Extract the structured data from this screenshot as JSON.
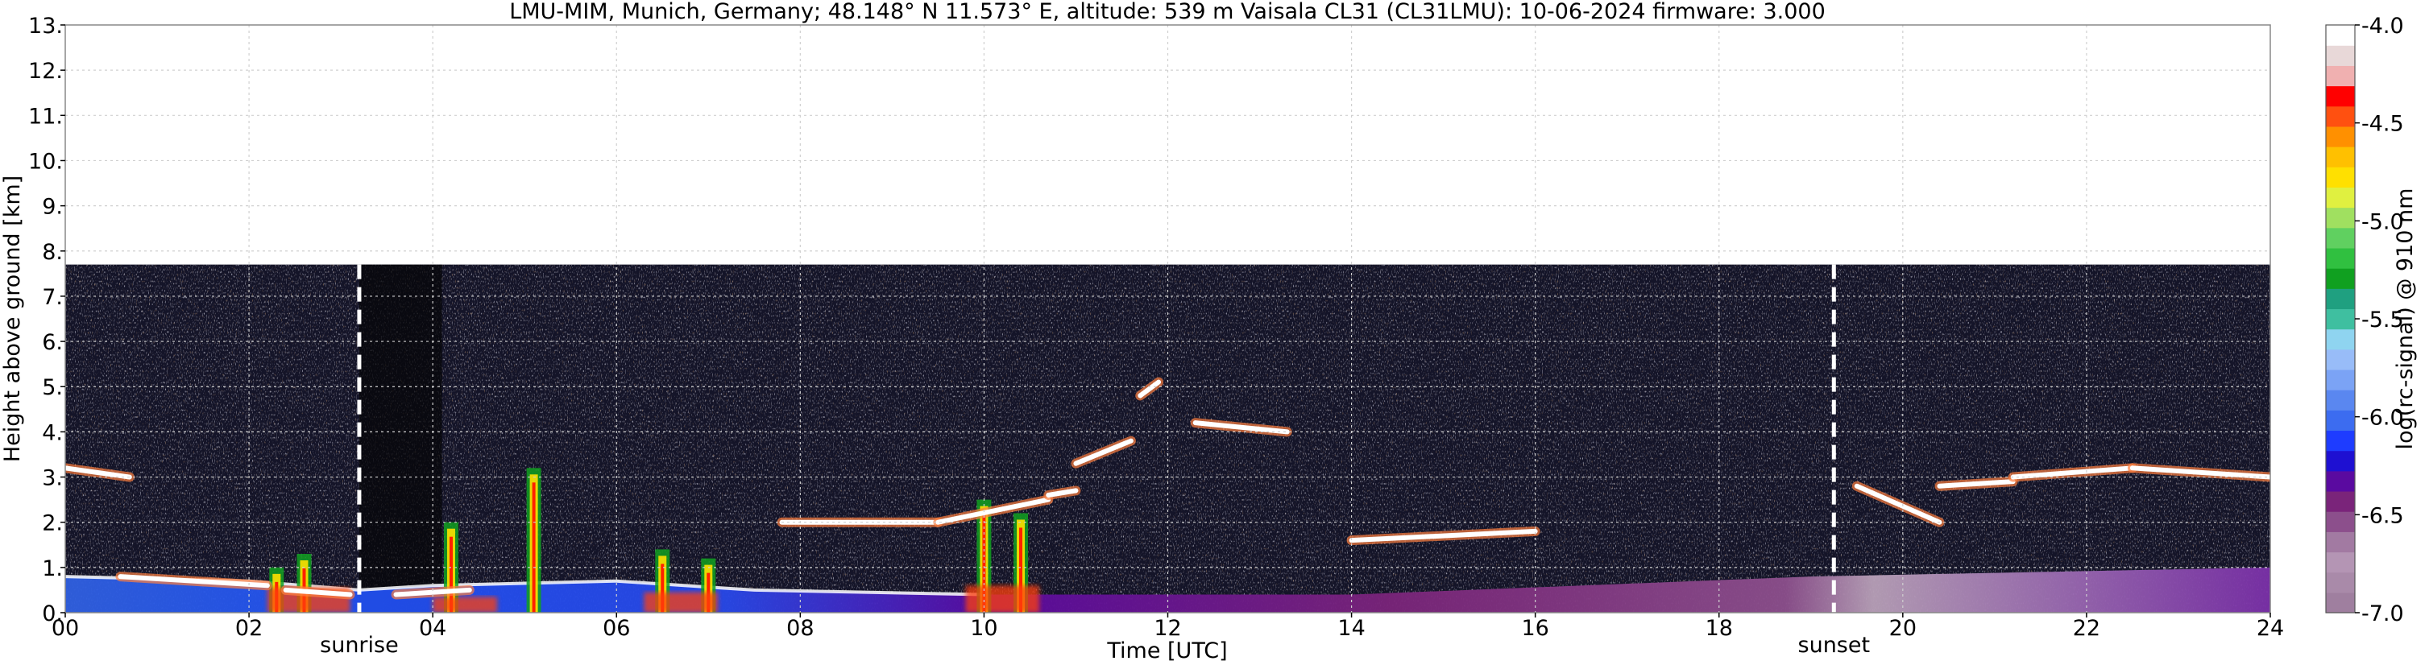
{
  "chart_data": {
    "type": "heatmap",
    "title": "LMU-MIM, Munich, Germany; 48.148° N 11.573° E, altitude: 539 m    Vaisala CL31 (CL31LMU): 10-06-2024    firmware: 3.000",
    "xlabel": "Time [UTC]",
    "ylabel": "Height above ground [km]",
    "xlim": [
      0,
      24
    ],
    "ylim": [
      0,
      13
    ],
    "x_ticks": [
      0,
      2,
      4,
      6,
      8,
      10,
      12,
      14,
      16,
      18,
      20,
      22,
      24
    ],
    "x_tick_labels": [
      "00",
      "02",
      "04",
      "06",
      "08",
      "10",
      "12",
      "14",
      "16",
      "18",
      "20",
      "22",
      "24"
    ],
    "y_ticks": [
      0,
      1,
      2,
      3,
      4,
      5,
      6,
      7,
      8,
      9,
      10,
      11,
      12,
      13
    ],
    "y_tick_labels": [
      "0.",
      "1.",
      "2.",
      "3.",
      "4.",
      "5.",
      "6.",
      "7.",
      "8.",
      "9.",
      "10.",
      "11.",
      "12.",
      "13."
    ],
    "grid": true,
    "data_max_height_km": 7.7,
    "events": [
      {
        "label": "sunrise",
        "time": 3.2
      },
      {
        "label": "sunset",
        "time": 19.25
      }
    ],
    "colorbar": {
      "label": "log(rc-signal) @ 910 nm",
      "range": [
        -7.0,
        -4.0
      ],
      "ticks": [
        -7.0,
        -6.5,
        -6.0,
        -5.5,
        -5.0,
        -4.5,
        -4.0
      ],
      "tick_labels": [
        "-7.0",
        "-6.5",
        "-6.0",
        "-5.5",
        "-5.0",
        "-4.5",
        "-4.0"
      ],
      "colors": [
        "#9f7f9f",
        "#a98aa9",
        "#b495b4",
        "#a27aa2",
        "#8c4f8c",
        "#7a247a",
        "#5a0aa0",
        "#1e10d2",
        "#1e3cff",
        "#3c6cf0",
        "#5a87f0",
        "#7ba3f5",
        "#98bcf8",
        "#8fd4f0",
        "#3fbfa0",
        "#1fa080",
        "#10a020",
        "#30c040",
        "#60d060",
        "#a0e060",
        "#e0f040",
        "#ffe000",
        "#ffc000",
        "#ff9000",
        "#ff5010",
        "#ff0000",
        "#f0b0b0",
        "#e8d8d8",
        "#ffffff"
      ]
    },
    "features": {
      "aerosol_layer_top_km": [
        {
          "time": 0.0,
          "height": 0.8
        },
        {
          "time": 2.0,
          "height": 0.7
        },
        {
          "time": 3.2,
          "height": 0.5
        },
        {
          "time": 4.0,
          "height": 0.6
        },
        {
          "time": 6.0,
          "height": 0.7
        },
        {
          "time": 7.5,
          "height": 0.5
        },
        {
          "time": 10.0,
          "height": 0.4
        },
        {
          "time": 14.0,
          "height": 0.4
        },
        {
          "time": 19.0,
          "height": 0.8
        },
        {
          "time": 24.0,
          "height": 1.0
        }
      ],
      "cloud_layers_km": [
        {
          "t0": 0.0,
          "t1": 0.7,
          "h0": 3.2,
          "h1": 3.0
        },
        {
          "t0": 0.6,
          "t1": 2.2,
          "h0": 0.8,
          "h1": 0.6
        },
        {
          "t0": 2.4,
          "t1": 3.1,
          "h0": 0.5,
          "h1": 0.4
        },
        {
          "t0": 3.6,
          "t1": 4.4,
          "h0": 0.4,
          "h1": 0.5
        },
        {
          "t0": 7.8,
          "t1": 9.5,
          "h0": 2.0,
          "h1": 2.0
        },
        {
          "t0": 9.5,
          "t1": 10.7,
          "h0": 2.0,
          "h1": 2.5
        },
        {
          "t0": 10.7,
          "t1": 11.0,
          "h0": 2.6,
          "h1": 2.7
        },
        {
          "t0": 11.0,
          "t1": 11.6,
          "h0": 3.3,
          "h1": 3.8
        },
        {
          "t0": 11.7,
          "t1": 11.9,
          "h0": 4.8,
          "h1": 5.1
        },
        {
          "t0": 12.3,
          "t1": 13.3,
          "h0": 4.2,
          "h1": 4.0
        },
        {
          "t0": 14.0,
          "t1": 16.0,
          "h0": 1.6,
          "h1": 1.8
        },
        {
          "t0": 19.5,
          "t1": 20.4,
          "h0": 2.8,
          "h1": 2.0
        },
        {
          "t0": 20.4,
          "t1": 21.2,
          "h0": 2.8,
          "h1": 2.9
        },
        {
          "t0": 21.2,
          "t1": 22.5,
          "h0": 3.0,
          "h1": 3.2
        },
        {
          "t0": 22.5,
          "t1": 24.0,
          "h0": 3.2,
          "h1": 3.0
        }
      ],
      "plumes": [
        {
          "time": 2.3,
          "h_top": 1.0
        },
        {
          "time": 2.6,
          "h_top": 1.3
        },
        {
          "time": 4.2,
          "h_top": 2.0
        },
        {
          "time": 5.1,
          "h_top": 3.2
        },
        {
          "time": 6.5,
          "h_top": 1.4
        },
        {
          "time": 7.0,
          "h_top": 1.2
        },
        {
          "time": 10.0,
          "h_top": 2.5
        },
        {
          "time": 10.4,
          "h_top": 2.2
        }
      ]
    }
  }
}
